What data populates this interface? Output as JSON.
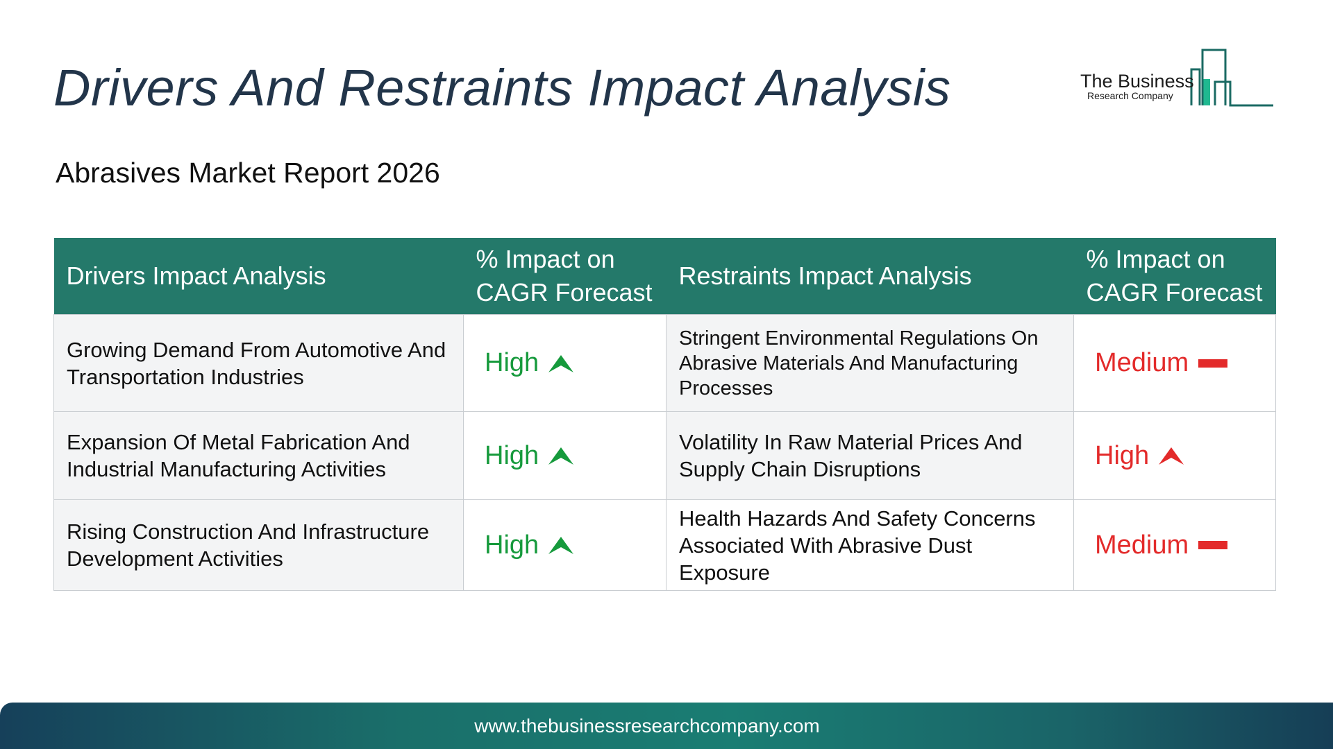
{
  "title": "Drivers And Restraints Impact Analysis",
  "subtitle": "Abrasives Market Report 2026",
  "logo": {
    "line1": "The Business",
    "line2": "Research Company"
  },
  "table": {
    "headers": {
      "drivers": "Drivers Impact Analysis",
      "drivers_impact": "% Impact on CAGR Forecast",
      "restraints": "Restraints Impact Analysis",
      "restraints_impact": "% Impact on CAGR Forecast"
    },
    "rows": [
      {
        "driver": "Growing Demand From Automotive And Transportation Industries",
        "driver_impact": "High",
        "driver_icon": "arrow-up-icon",
        "restraint": "Stringent Environmental Regulations On Abrasive Materials And Manufacturing Processes",
        "restraint_impact": "Medium",
        "restraint_icon": "dash-icon"
      },
      {
        "driver": "Expansion Of Metal Fabrication And Industrial Manufacturing Activities",
        "driver_impact": "High",
        "driver_icon": "arrow-up-icon",
        "restraint": "Volatility In Raw Material Prices And Supply Chain Disruptions",
        "restraint_impact": "High",
        "restraint_icon": "arrow-up-icon"
      },
      {
        "driver": "Rising Construction And Infrastructure Development Activities",
        "driver_impact": "High",
        "driver_icon": "arrow-up-icon",
        "restraint": "Health Hazards And Safety Concerns Associated With Abrasive Dust Exposure",
        "restraint_impact": "Medium",
        "restraint_icon": "dash-icon"
      }
    ]
  },
  "colors": {
    "header_bg": "#24796a",
    "driver_impact": "#169a3c",
    "restraint_impact": "#e32a2a"
  },
  "footer": {
    "url": "www.thebusinessresearchcompany.com"
  }
}
